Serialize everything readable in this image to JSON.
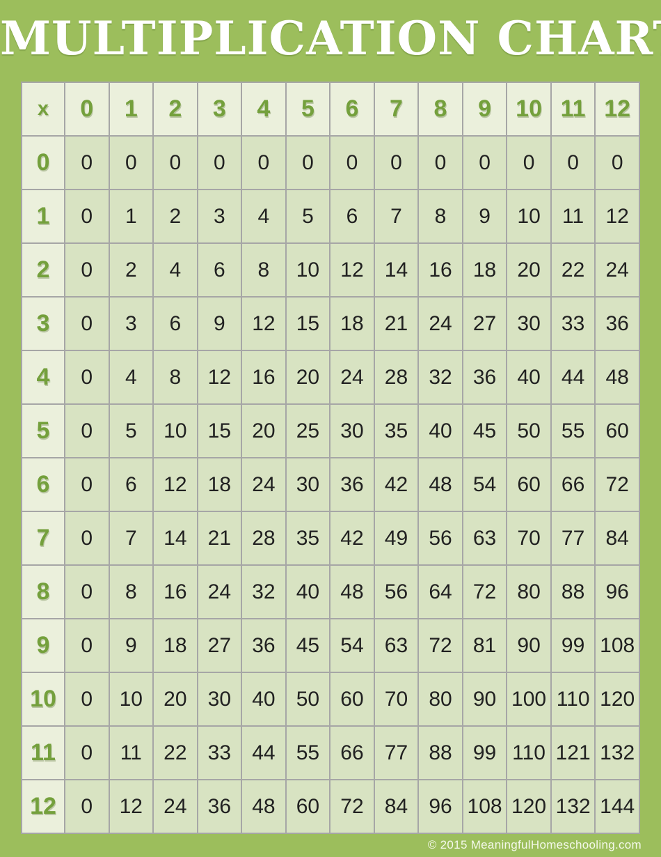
{
  "page": {
    "title": "MULTIPLICATION CHART",
    "footer": "© 2015 MeaningfulHomeschooling.com"
  },
  "colors": {
    "background_green": "#9cbe5c",
    "header_cell_bg": "#ebf0dc",
    "data_cell_bg": "#d8e3c2",
    "grid_line_gray": "#a6a6a6",
    "header_text_green": "#74a03c",
    "data_text": "#212121",
    "title_text": "#ffffff",
    "footer_text": "#f4f8ea"
  },
  "chart_data": {
    "type": "table",
    "title": "MULTIPLICATION CHART",
    "corner_label": "x",
    "column_headers": [
      "0",
      "1",
      "2",
      "3",
      "4",
      "5",
      "6",
      "7",
      "8",
      "9",
      "10",
      "11",
      "12"
    ],
    "row_headers": [
      "0",
      "1",
      "2",
      "3",
      "4",
      "5",
      "6",
      "7",
      "8",
      "9",
      "10",
      "11",
      "12"
    ],
    "rows": [
      [
        0,
        0,
        0,
        0,
        0,
        0,
        0,
        0,
        0,
        0,
        0,
        0,
        0
      ],
      [
        0,
        1,
        2,
        3,
        4,
        5,
        6,
        7,
        8,
        9,
        10,
        11,
        12
      ],
      [
        0,
        2,
        4,
        6,
        8,
        10,
        12,
        14,
        16,
        18,
        20,
        22,
        24
      ],
      [
        0,
        3,
        6,
        9,
        12,
        15,
        18,
        21,
        24,
        27,
        30,
        33,
        36
      ],
      [
        0,
        4,
        8,
        12,
        16,
        20,
        24,
        28,
        32,
        36,
        40,
        44,
        48
      ],
      [
        0,
        5,
        10,
        15,
        20,
        25,
        30,
        35,
        40,
        45,
        50,
        55,
        60
      ],
      [
        0,
        6,
        12,
        18,
        24,
        30,
        36,
        42,
        48,
        54,
        60,
        66,
        72
      ],
      [
        0,
        7,
        14,
        21,
        28,
        35,
        42,
        49,
        56,
        63,
        70,
        77,
        84
      ],
      [
        0,
        8,
        16,
        24,
        32,
        40,
        48,
        56,
        64,
        72,
        80,
        88,
        96
      ],
      [
        0,
        9,
        18,
        27,
        36,
        45,
        54,
        63,
        72,
        81,
        90,
        99,
        108
      ],
      [
        0,
        10,
        20,
        30,
        40,
        50,
        60,
        70,
        80,
        90,
        100,
        110,
        120
      ],
      [
        0,
        11,
        22,
        33,
        44,
        55,
        66,
        77,
        88,
        99,
        110,
        121,
        132
      ],
      [
        0,
        12,
        24,
        36,
        48,
        60,
        72,
        84,
        96,
        108,
        120,
        132,
        144
      ]
    ],
    "layout": {
      "grid_lines": true,
      "header_row": true,
      "header_column": true
    }
  }
}
